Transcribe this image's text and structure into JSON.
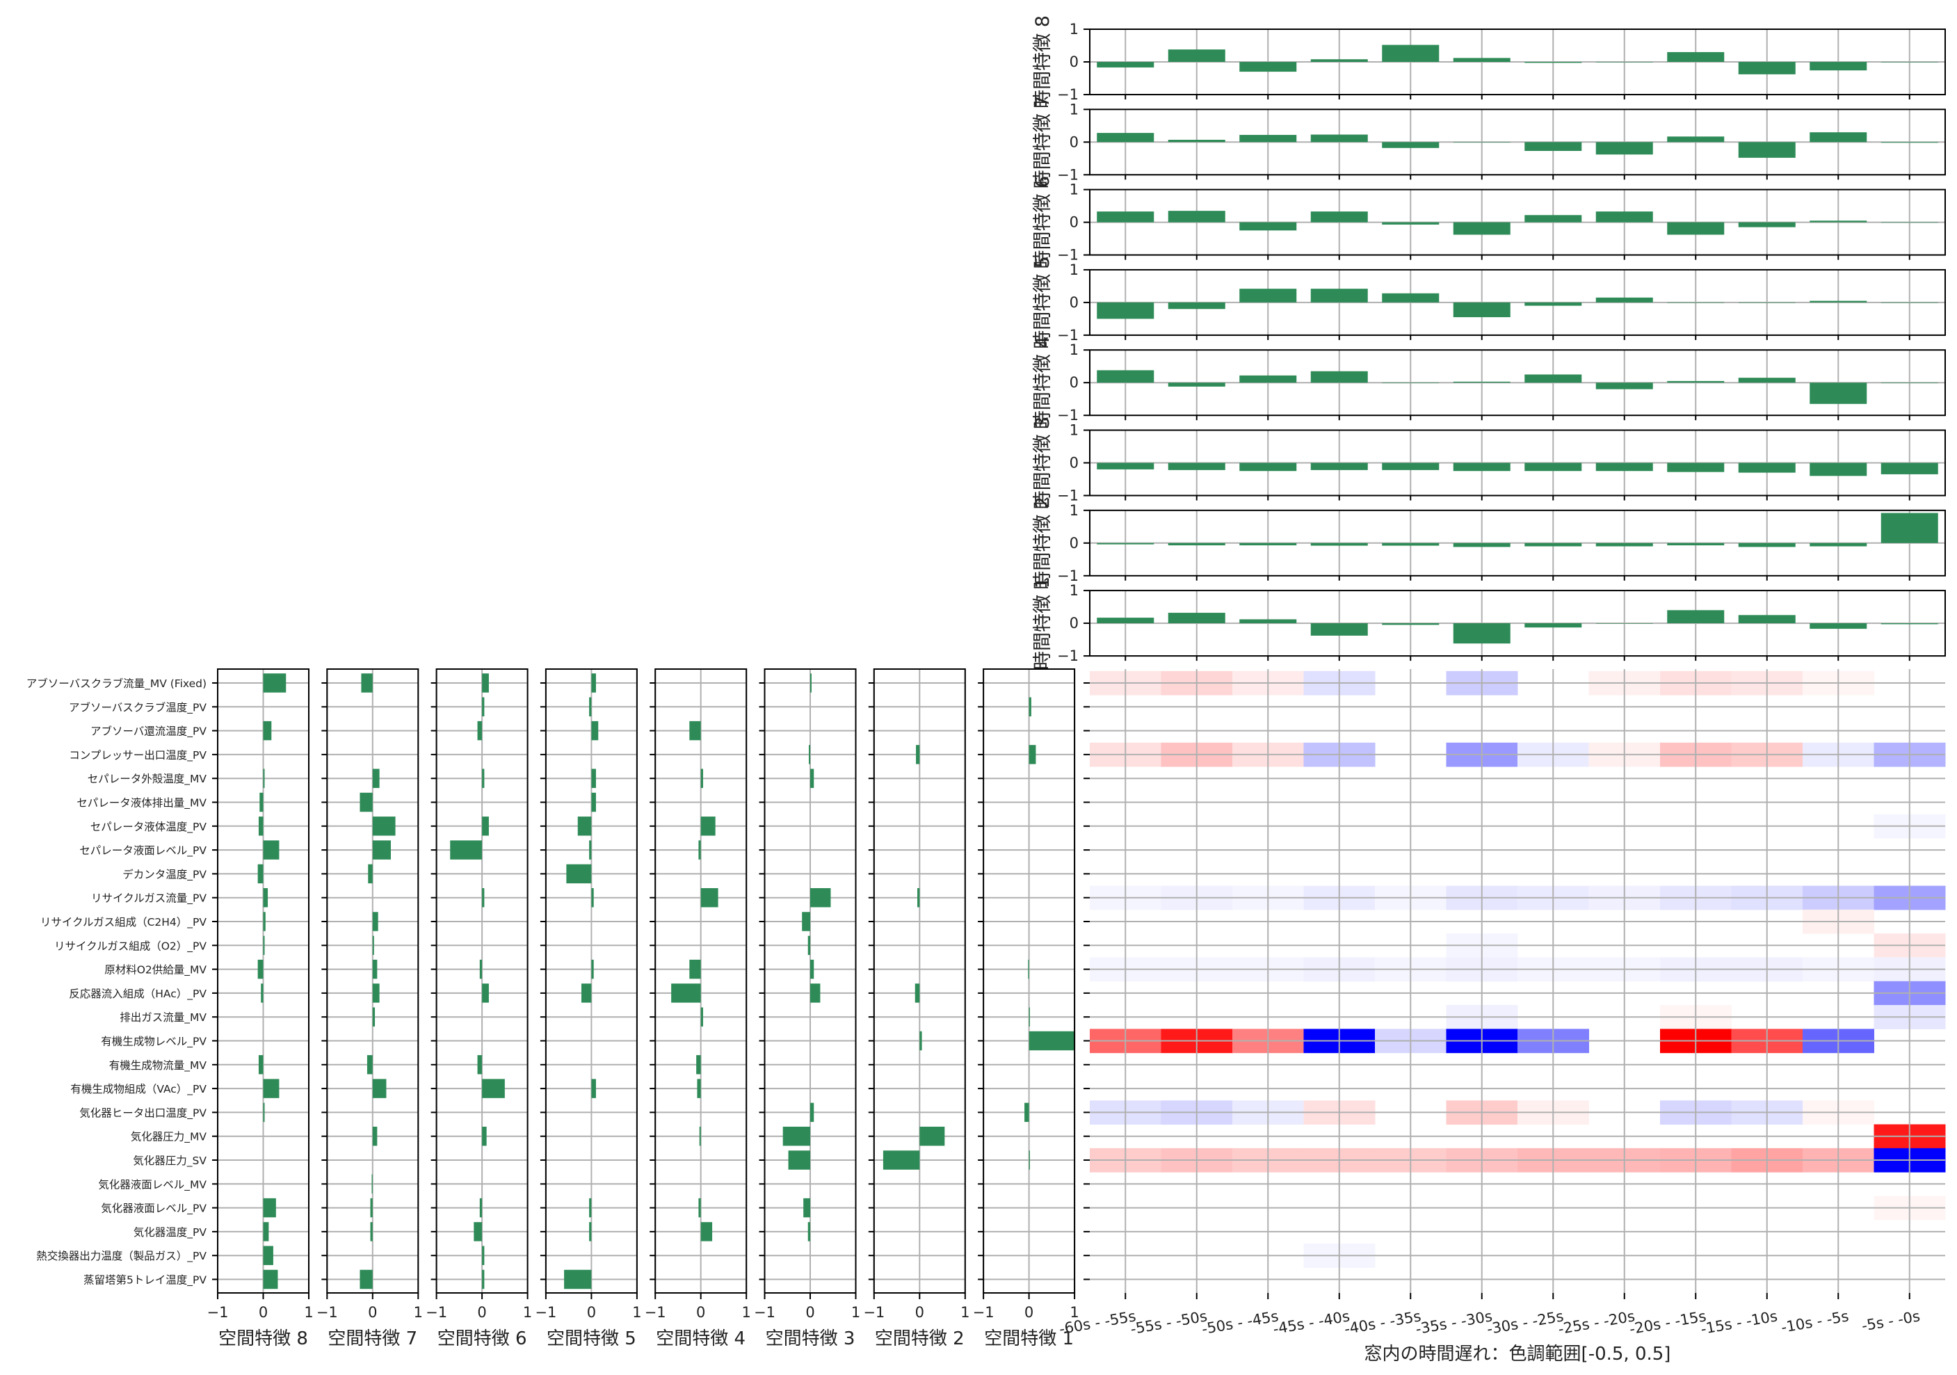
{
  "colors": {
    "bar": "#2e8b57",
    "grid": "#b0b0b0",
    "frame": "#000000",
    "positive": "#ff0000",
    "negative": "#0000ff"
  },
  "chart_data": [
    {
      "type": "bar",
      "orientation": "vertical",
      "name": "temporal-features",
      "categories": [
        "-60s - -55s",
        "-55s - -50s",
        "-50s - -45s",
        "-45s - -40s",
        "-40s - -35s",
        "-35s - -30s",
        "-30s - -25s",
        "-25s - -20s",
        "-20s - -15s",
        "-15s - -10s",
        "-10s - -5s",
        "-5s - -0s"
      ],
      "ylim": [
        -1,
        1
      ],
      "yticks": [
        "1",
        "0",
        "−1"
      ],
      "grid": true,
      "series": [
        {
          "name": "時間特徴 8",
          "values": [
            -0.17,
            0.38,
            -0.3,
            0.08,
            0.52,
            0.12,
            -0.03,
            0.0,
            0.3,
            -0.38,
            -0.26,
            0.0
          ]
        },
        {
          "name": "時間特徴 7",
          "values": [
            0.28,
            0.07,
            0.22,
            0.23,
            -0.18,
            0.0,
            -0.27,
            -0.38,
            0.17,
            -0.48,
            0.3,
            -0.02
          ]
        },
        {
          "name": "時間特徴 6",
          "values": [
            0.33,
            0.35,
            -0.25,
            0.33,
            -0.07,
            -0.38,
            0.22,
            0.33,
            -0.38,
            -0.15,
            0.05,
            0.0
          ]
        },
        {
          "name": "時間特徴 5",
          "values": [
            -0.5,
            -0.2,
            0.42,
            0.42,
            0.28,
            -0.45,
            -0.1,
            0.15,
            0.0,
            0.0,
            0.05,
            0.0
          ]
        },
        {
          "name": "時間特徴 4",
          "values": [
            0.38,
            -0.12,
            0.22,
            0.35,
            0.0,
            0.03,
            0.25,
            -0.2,
            0.05,
            0.15,
            -0.65,
            0.0
          ]
        },
        {
          "name": "時間特徴 3",
          "values": [
            -0.2,
            -0.22,
            -0.25,
            -0.22,
            -0.22,
            -0.25,
            -0.25,
            -0.25,
            -0.28,
            -0.3,
            -0.4,
            -0.35
          ]
        },
        {
          "name": "時間特徴 2",
          "values": [
            -0.04,
            -0.07,
            -0.07,
            -0.08,
            -0.08,
            -0.12,
            -0.1,
            -0.1,
            -0.07,
            -0.12,
            -0.1,
            0.92
          ]
        },
        {
          "name": "時間特徴 1",
          "values": [
            0.17,
            0.32,
            0.12,
            -0.38,
            -0.05,
            -0.62,
            -0.13,
            0.0,
            0.4,
            0.25,
            -0.17,
            -0.03
          ]
        }
      ]
    },
    {
      "type": "bar",
      "orientation": "horizontal",
      "name": "spatial-features",
      "categories": [
        "アブソーバスクラブ流量_MV (Fixed)",
        "アブソーバスクラブ温度_PV",
        "アブソーバ還流温度_PV",
        "コンプレッサー出口温度_PV",
        "セパレータ外殻温度_MV",
        "セパレータ液体排出量_MV",
        "セパレータ液体温度_PV",
        "セパレータ液面レベル_PV",
        "デカンタ温度_PV",
        "リサイクルガス流量_PV",
        "リサイクルガス組成（C2H4）_PV",
        "リサイクルガス組成（O2）_PV",
        "原材料O2供給量_MV",
        "反応器流入組成（HAc）_PV",
        "排出ガス流量_MV",
        "有機生成物レベル_PV",
        "有機生成物流量_MV",
        "有機生成物組成（VAc）_PV",
        "気化器ヒータ出口温度_PV",
        "気化器圧力_MV",
        "気化器圧力_SV",
        "気化器液面レベル_MV",
        "気化器液面レベル_PV",
        "気化器温度_PV",
        "熱交換器出力温度（製品ガス）_PV",
        "蒸留塔第5トレイ温度_PV"
      ],
      "xlim": [
        -1,
        1
      ],
      "xticks": [
        "−1",
        "0",
        "1"
      ],
      "grid": true,
      "series": [
        {
          "name": "空間特徴 8",
          "values": [
            0.5,
            0.0,
            0.18,
            0.0,
            0.03,
            -0.08,
            -0.1,
            0.35,
            -0.12,
            0.1,
            0.05,
            0.03,
            -0.12,
            -0.05,
            0.0,
            0.0,
            -0.1,
            0.35,
            0.03,
            0.0,
            0.0,
            0.0,
            0.28,
            0.12,
            0.22,
            0.32
          ]
        },
        {
          "name": "空間特徴 7",
          "values": [
            -0.25,
            0.0,
            0.0,
            0.0,
            0.15,
            -0.28,
            0.5,
            0.4,
            -0.1,
            0.0,
            0.12,
            0.03,
            0.1,
            0.15,
            0.05,
            0.0,
            -0.12,
            0.3,
            0.0,
            0.1,
            0.0,
            -0.02,
            -0.05,
            -0.05,
            0.0,
            -0.28
          ]
        },
        {
          "name": "空間特徴 6",
          "values": [
            0.15,
            0.05,
            -0.1,
            0.0,
            0.05,
            0.0,
            0.15,
            -0.7,
            0.0,
            0.05,
            0.0,
            0.0,
            -0.05,
            0.15,
            0.0,
            0.0,
            -0.1,
            0.5,
            0.0,
            0.1,
            0.0,
            0.0,
            -0.05,
            -0.18,
            0.05,
            0.05
          ]
        },
        {
          "name": "空間特徴 5",
          "values": [
            0.1,
            -0.05,
            0.15,
            0.0,
            0.1,
            0.1,
            -0.3,
            -0.05,
            -0.55,
            0.05,
            0.0,
            0.0,
            0.05,
            -0.22,
            0.0,
            0.0,
            0.0,
            0.1,
            0.0,
            0.0,
            0.0,
            0.0,
            -0.05,
            -0.05,
            0.0,
            -0.6
          ]
        },
        {
          "name": "空間特徴 4",
          "values": [
            0.0,
            0.0,
            -0.25,
            0.0,
            0.05,
            0.0,
            0.32,
            -0.05,
            0.0,
            0.38,
            0.0,
            0.0,
            -0.25,
            -0.65,
            0.05,
            0.0,
            -0.1,
            -0.08,
            0.0,
            -0.03,
            0.0,
            0.0,
            -0.05,
            0.25,
            0.0,
            0.0
          ]
        },
        {
          "name": "空間特徴 3",
          "values": [
            0.03,
            0.0,
            0.0,
            -0.03,
            0.08,
            0.0,
            0.0,
            0.0,
            0.0,
            0.45,
            -0.18,
            -0.05,
            0.08,
            0.22,
            0.0,
            0.0,
            0.0,
            0.0,
            0.08,
            -0.6,
            -0.48,
            0.0,
            -0.15,
            -0.05,
            0.0,
            0.0
          ]
        },
        {
          "name": "空間特徴 2",
          "values": [
            0.0,
            0.0,
            0.0,
            -0.08,
            0.0,
            0.0,
            0.0,
            0.0,
            0.0,
            -0.05,
            0.0,
            0.0,
            0.0,
            -0.1,
            0.0,
            0.05,
            0.0,
            0.0,
            0.0,
            0.55,
            -0.8,
            0.0,
            0.0,
            0.0,
            0.0,
            0.0
          ]
        },
        {
          "name": "空間特徴 1",
          "values": [
            0.0,
            0.05,
            0.0,
            0.15,
            0.0,
            0.0,
            0.0,
            0.0,
            0.0,
            0.0,
            0.0,
            0.0,
            -0.02,
            0.0,
            0.02,
            1.0,
            0.0,
            0.0,
            -0.1,
            0.0,
            0.02,
            0.0,
            0.0,
            0.0,
            0.0,
            0.0
          ]
        }
      ]
    },
    {
      "type": "heatmap",
      "name": "window-heatmap",
      "xlabel": "窓内の時間遅れ：色調範囲[-0.5, 0.5]",
      "x": [
        "-60s - -55s",
        "-55s - -50s",
        "-50s - -45s",
        "-45s - -40s",
        "-40s - -35s",
        "-35s - -30s",
        "-30s - -25s",
        "-25s - -20s",
        "-20s - -15s",
        "-15s - -10s",
        "-10s - -5s",
        "-5s - -0s"
      ],
      "color_range": [
        -0.5,
        0.5
      ],
      "values": [
        [
          0.05,
          0.08,
          0.04,
          -0.06,
          0.0,
          -0.1,
          0.0,
          0.03,
          0.06,
          0.05,
          0.02,
          0.0
        ],
        [
          0.0,
          0.0,
          0.0,
          0.0,
          0.0,
          0.0,
          0.0,
          0.0,
          0.0,
          0.0,
          0.0,
          0.0
        ],
        [
          0.0,
          0.0,
          0.0,
          0.0,
          0.0,
          0.0,
          0.0,
          0.0,
          0.0,
          0.0,
          0.0,
          0.0
        ],
        [
          0.06,
          0.12,
          0.06,
          -0.12,
          0.0,
          -0.2,
          -0.04,
          0.03,
          0.12,
          0.1,
          -0.04,
          -0.15
        ],
        [
          0.0,
          0.0,
          0.0,
          0.0,
          0.0,
          0.0,
          0.0,
          0.0,
          0.0,
          0.0,
          0.0,
          0.0
        ],
        [
          0.0,
          0.0,
          0.0,
          0.0,
          0.0,
          0.0,
          0.0,
          0.0,
          0.0,
          0.0,
          0.0,
          0.0
        ],
        [
          0.0,
          0.0,
          0.0,
          0.0,
          0.0,
          0.0,
          0.0,
          0.0,
          0.0,
          0.0,
          0.0,
          -0.02
        ],
        [
          0.0,
          0.0,
          0.0,
          0.0,
          0.0,
          0.0,
          0.0,
          0.0,
          0.0,
          0.0,
          0.0,
          0.0
        ],
        [
          0.0,
          0.0,
          0.0,
          0.0,
          0.0,
          0.0,
          0.0,
          0.0,
          0.0,
          0.0,
          0.0,
          0.0
        ],
        [
          -0.02,
          -0.03,
          -0.02,
          -0.04,
          -0.02,
          -0.05,
          -0.04,
          -0.03,
          -0.05,
          -0.06,
          -0.1,
          -0.18
        ],
        [
          0.0,
          0.0,
          0.0,
          0.0,
          0.0,
          0.0,
          0.0,
          0.0,
          0.0,
          0.0,
          0.03,
          0.0
        ],
        [
          0.0,
          0.0,
          0.0,
          0.0,
          0.0,
          -0.02,
          0.0,
          0.0,
          0.0,
          0.0,
          0.0,
          0.05
        ],
        [
          -0.02,
          -0.02,
          -0.02,
          -0.03,
          -0.02,
          -0.03,
          -0.02,
          -0.02,
          -0.03,
          -0.03,
          -0.02,
          -0.03
        ],
        [
          0.0,
          0.0,
          0.0,
          0.0,
          0.0,
          0.0,
          0.0,
          0.0,
          0.0,
          0.0,
          0.0,
          -0.22
        ],
        [
          0.0,
          0.0,
          0.0,
          0.0,
          0.0,
          -0.03,
          0.0,
          0.0,
          0.02,
          0.0,
          0.0,
          -0.05
        ],
        [
          0.3,
          0.45,
          0.25,
          -0.5,
          -0.08,
          -0.5,
          -0.25,
          0.0,
          0.5,
          0.35,
          -0.3,
          0.0
        ],
        [
          0.0,
          0.0,
          0.0,
          0.0,
          0.0,
          0.0,
          0.0,
          0.0,
          0.0,
          0.0,
          0.0,
          0.0
        ],
        [
          0.0,
          0.0,
          0.0,
          0.0,
          0.0,
          0.0,
          0.0,
          0.0,
          0.0,
          0.0,
          0.0,
          0.0
        ],
        [
          -0.06,
          -0.08,
          -0.04,
          0.06,
          0.0,
          0.1,
          0.03,
          0.0,
          -0.08,
          -0.06,
          0.02,
          0.0
        ],
        [
          0.0,
          0.0,
          0.0,
          0.0,
          0.0,
          0.0,
          0.0,
          0.0,
          0.0,
          0.0,
          0.0,
          0.45
        ],
        [
          0.1,
          0.12,
          0.1,
          0.1,
          0.1,
          0.12,
          0.14,
          0.14,
          0.15,
          0.18,
          0.15,
          -0.5
        ],
        [
          0.0,
          0.0,
          0.0,
          0.0,
          0.0,
          0.0,
          0.0,
          0.0,
          0.0,
          0.0,
          0.0,
          0.0
        ],
        [
          0.0,
          0.0,
          0.0,
          0.0,
          0.0,
          0.0,
          0.0,
          0.0,
          0.0,
          0.0,
          0.0,
          0.02
        ],
        [
          0.0,
          0.0,
          0.0,
          0.0,
          0.0,
          0.0,
          0.0,
          0.0,
          0.0,
          0.0,
          0.0,
          0.0
        ],
        [
          0.0,
          0.0,
          0.0,
          -0.02,
          0.0,
          0.0,
          0.0,
          0.0,
          0.0,
          0.0,
          0.0,
          0.0
        ],
        [
          0.0,
          0.0,
          0.0,
          0.0,
          0.0,
          0.0,
          0.0,
          0.0,
          0.0,
          0.0,
          0.0,
          0.0
        ]
      ]
    }
  ]
}
